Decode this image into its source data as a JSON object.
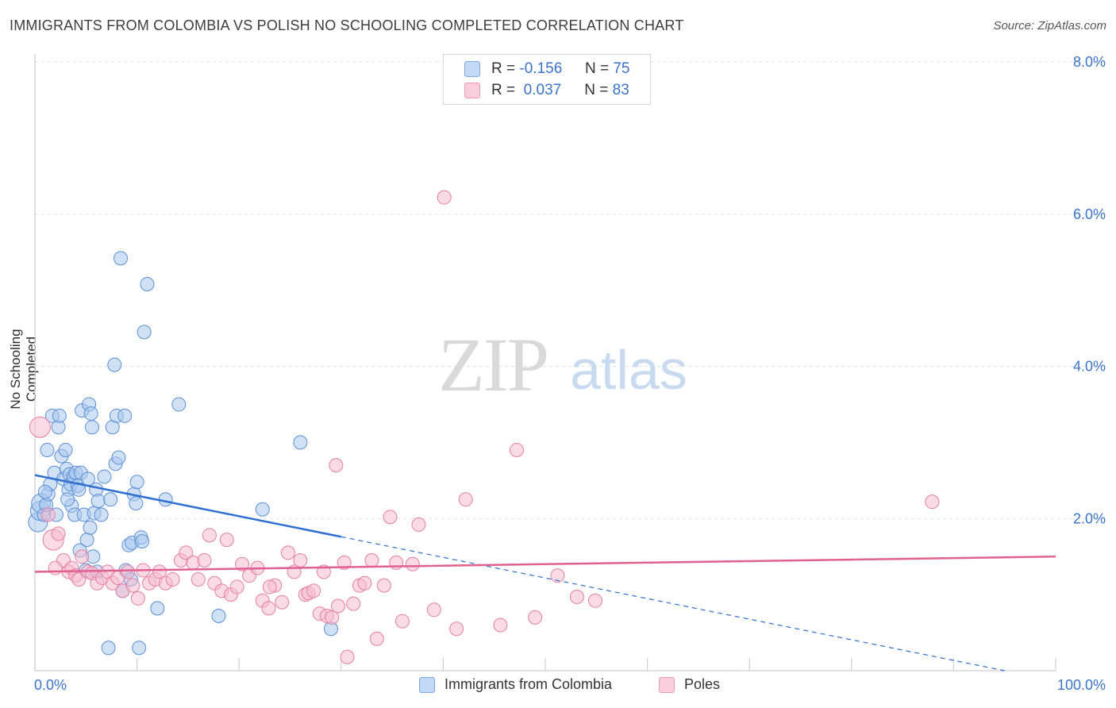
{
  "title": "IMMIGRANTS FROM COLOMBIA VS POLISH NO SCHOOLING COMPLETED CORRELATION CHART",
  "source": "Source: ZipAtlas.com",
  "watermark": {
    "zip": "ZIP",
    "atlas": "atlas"
  },
  "legend": {
    "series1": {
      "r_label": "R =",
      "r_value": "-0.156",
      "n_label": "N =",
      "n_value": "75"
    },
    "series2": {
      "r_label": "R =",
      "r_value": "0.037",
      "n_label": "N =",
      "n_value": "83"
    }
  },
  "colors": {
    "blue_fill": "#a9c8ef",
    "blue_stroke": "#5b8fd6",
    "blue_line": "#2e6fd0",
    "pink_fill": "#f6bcd0",
    "pink_stroke": "#e67fa2",
    "pink_line": "#e0608f",
    "axis_text": "#3a73c9"
  },
  "chart_data": {
    "type": "scatter",
    "title": "IMMIGRANTS FROM COLOMBIA VS POLISH NO SCHOOLING COMPLETED CORRELATION CHART",
    "xlabel": "",
    "ylabel": "No Schooling Completed",
    "xlim": [
      0,
      100
    ],
    "ylim": [
      0,
      8.0
    ],
    "x_tick_labels": [
      "0.0%",
      "100.0%"
    ],
    "y_ticks": [
      2.0,
      4.0,
      6.0,
      8.0
    ],
    "y_tick_labels": [
      "2.0%",
      "4.0%",
      "6.0%",
      "8.0%"
    ],
    "grid": true,
    "legend_position": "bottom",
    "series": [
      {
        "name": "Immigrants from Colombia",
        "color": "#a9c8ef",
        "trend": {
          "x0": 0,
          "y0": 2.57,
          "x1": 30,
          "y1": 1.76,
          "dash_to_x": 95,
          "dash_to_y": 0.0
        },
        "points": [
          [
            0.3,
            1.95
          ],
          [
            0.5,
            2.1
          ],
          [
            0.6,
            2.2
          ],
          [
            0.9,
            2.05
          ],
          [
            1.1,
            2.18
          ],
          [
            1.2,
            2.9
          ],
          [
            1.3,
            2.32
          ],
          [
            1.5,
            2.45
          ],
          [
            1.7,
            3.35
          ],
          [
            1.9,
            2.6
          ],
          [
            2.1,
            2.05
          ],
          [
            2.3,
            3.2
          ],
          [
            2.4,
            3.35
          ],
          [
            2.6,
            2.82
          ],
          [
            2.8,
            2.52
          ],
          [
            3.0,
            2.9
          ],
          [
            3.1,
            2.65
          ],
          [
            3.3,
            2.38
          ],
          [
            3.4,
            2.58
          ],
          [
            3.5,
            2.45
          ],
          [
            3.6,
            2.17
          ],
          [
            3.8,
            2.55
          ],
          [
            3.9,
            2.05
          ],
          [
            4.0,
            2.6
          ],
          [
            4.2,
            2.43
          ],
          [
            4.3,
            2.38
          ],
          [
            4.4,
            1.58
          ],
          [
            4.5,
            2.6
          ],
          [
            4.6,
            3.42
          ],
          [
            4.8,
            2.05
          ],
          [
            5.0,
            1.32
          ],
          [
            5.1,
            1.72
          ],
          [
            5.2,
            2.52
          ],
          [
            5.3,
            3.5
          ],
          [
            5.4,
            1.88
          ],
          [
            5.5,
            3.38
          ],
          [
            5.6,
            3.2
          ],
          [
            5.7,
            1.5
          ],
          [
            5.8,
            2.07
          ],
          [
            6.0,
            2.38
          ],
          [
            6.1,
            1.3
          ],
          [
            6.2,
            2.23
          ],
          [
            6.5,
            2.05
          ],
          [
            6.8,
            2.55
          ],
          [
            7.2,
            0.3
          ],
          [
            7.4,
            2.25
          ],
          [
            7.6,
            3.2
          ],
          [
            7.8,
            4.02
          ],
          [
            7.9,
            2.72
          ],
          [
            8.0,
            3.35
          ],
          [
            8.2,
            2.8
          ],
          [
            8.4,
            5.42
          ],
          [
            8.6,
            1.05
          ],
          [
            8.8,
            3.35
          ],
          [
            8.9,
            1.32
          ],
          [
            9.2,
            1.65
          ],
          [
            9.4,
            1.2
          ],
          [
            9.5,
            1.68
          ],
          [
            9.7,
            2.32
          ],
          [
            9.9,
            2.2
          ],
          [
            10.0,
            2.48
          ],
          [
            10.2,
            0.3
          ],
          [
            10.4,
            1.75
          ],
          [
            10.5,
            1.7
          ],
          [
            10.7,
            4.45
          ],
          [
            11.0,
            5.08
          ],
          [
            12.0,
            0.82
          ],
          [
            12.8,
            2.25
          ],
          [
            14.1,
            3.5
          ],
          [
            18.0,
            0.72
          ],
          [
            22.3,
            2.12
          ],
          [
            26.0,
            3.0
          ],
          [
            29.0,
            0.55
          ],
          [
            1.0,
            2.35
          ],
          [
            3.2,
            2.25
          ]
        ]
      },
      {
        "name": "Poles",
        "color": "#f6bcd0",
        "trend": {
          "x0": 0,
          "y0": 1.3,
          "x1": 100,
          "y1": 1.5
        },
        "points": [
          [
            0.5,
            3.2
          ],
          [
            1.3,
            2.05
          ],
          [
            1.8,
            1.72
          ],
          [
            2.3,
            1.8
          ],
          [
            2.8,
            1.45
          ],
          [
            3.3,
            1.3
          ],
          [
            3.6,
            1.35
          ],
          [
            4.0,
            1.25
          ],
          [
            4.3,
            1.2
          ],
          [
            4.6,
            1.5
          ],
          [
            5.2,
            1.3
          ],
          [
            5.6,
            1.28
          ],
          [
            6.1,
            1.15
          ],
          [
            6.6,
            1.22
          ],
          [
            7.1,
            1.3
          ],
          [
            7.6,
            1.15
          ],
          [
            8.1,
            1.22
          ],
          [
            8.6,
            1.05
          ],
          [
            9.1,
            1.3
          ],
          [
            9.6,
            1.12
          ],
          [
            10.1,
            0.95
          ],
          [
            10.6,
            1.32
          ],
          [
            11.2,
            1.15
          ],
          [
            11.8,
            1.2
          ],
          [
            12.2,
            1.3
          ],
          [
            12.8,
            1.15
          ],
          [
            13.5,
            1.2
          ],
          [
            14.3,
            1.45
          ],
          [
            14.8,
            1.55
          ],
          [
            15.5,
            1.42
          ],
          [
            16.0,
            1.2
          ],
          [
            16.6,
            1.45
          ],
          [
            17.1,
            1.78
          ],
          [
            17.6,
            1.15
          ],
          [
            18.3,
            1.05
          ],
          [
            18.8,
            1.72
          ],
          [
            19.2,
            1.0
          ],
          [
            19.8,
            1.1
          ],
          [
            20.3,
            1.4
          ],
          [
            21.0,
            1.25
          ],
          [
            21.8,
            1.35
          ],
          [
            22.3,
            0.92
          ],
          [
            22.9,
            0.82
          ],
          [
            23.5,
            1.12
          ],
          [
            24.2,
            0.9
          ],
          [
            24.8,
            1.55
          ],
          [
            25.4,
            1.3
          ],
          [
            26.0,
            1.45
          ],
          [
            26.5,
            1.0
          ],
          [
            26.8,
            1.02
          ],
          [
            27.3,
            1.05
          ],
          [
            27.9,
            0.75
          ],
          [
            28.3,
            1.3
          ],
          [
            28.6,
            0.72
          ],
          [
            29.1,
            0.7
          ],
          [
            29.7,
            0.85
          ],
          [
            30.3,
            1.42
          ],
          [
            30.6,
            0.18
          ],
          [
            31.2,
            0.88
          ],
          [
            31.8,
            1.12
          ],
          [
            32.3,
            1.15
          ],
          [
            33.0,
            1.45
          ],
          [
            33.5,
            0.42
          ],
          [
            34.2,
            1.12
          ],
          [
            34.8,
            2.02
          ],
          [
            35.4,
            1.42
          ],
          [
            36.0,
            0.65
          ],
          [
            37.0,
            1.4
          ],
          [
            37.6,
            1.92
          ],
          [
            39.1,
            0.8
          ],
          [
            40.1,
            6.22
          ],
          [
            41.3,
            0.55
          ],
          [
            42.2,
            2.25
          ],
          [
            45.6,
            0.6
          ],
          [
            47.2,
            2.9
          ],
          [
            49.0,
            0.7
          ],
          [
            51.2,
            1.25
          ],
          [
            53.1,
            0.97
          ],
          [
            54.9,
            0.92
          ],
          [
            87.9,
            2.22
          ],
          [
            29.5,
            2.7
          ],
          [
            23.0,
            1.1
          ],
          [
            2.0,
            1.35
          ]
        ]
      }
    ]
  },
  "bottom_legend": {
    "series1": "Immigrants from Colombia",
    "series2": "Poles"
  }
}
